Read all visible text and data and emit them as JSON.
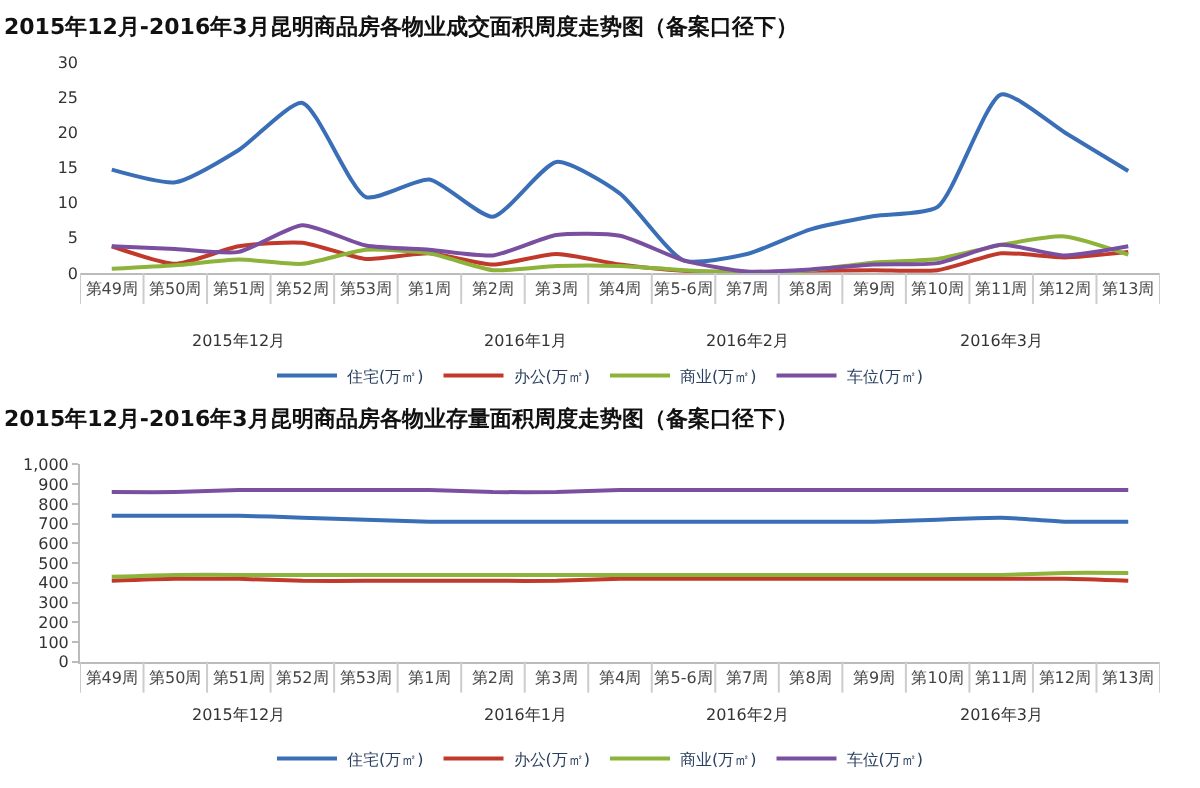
{
  "chart_data": [
    {
      "type": "line",
      "title": "2015年12月-2016年3月昆明商品房各物业成交面积周度走势图（备案口径下）",
      "categories": [
        "第49周",
        "第50周",
        "第51周",
        "第52周",
        "第53周",
        "第1周",
        "第2周",
        "第3周",
        "第4周",
        "第5-6周",
        "第7周",
        "第8周",
        "第9周",
        "第10周",
        "第11周",
        "第12周",
        "第13周"
      ],
      "series": [
        {
          "name": "住宅(万㎡)",
          "color": "#3a6fb8",
          "values": [
            14.7,
            12.9,
            17.5,
            24.2,
            10.8,
            13.3,
            8.0,
            15.8,
            11.3,
            1.8,
            2.7,
            6.2,
            8.1,
            9.4,
            25.4,
            20.0,
            14.5
          ]
        },
        {
          "name": "办公(万㎡)",
          "color": "#c0392b",
          "values": [
            3.8,
            1.3,
            3.8,
            4.3,
            2.0,
            2.8,
            1.2,
            2.7,
            1.2,
            0.3,
            0.1,
            0.3,
            0.4,
            0.4,
            2.8,
            2.2,
            3.0
          ]
        },
        {
          "name": "商业(万㎡)",
          "color": "#8db33a",
          "values": [
            0.6,
            1.1,
            1.9,
            1.3,
            3.3,
            2.8,
            0.4,
            1.0,
            1.0,
            0.4,
            0.1,
            0.4,
            1.5,
            2.0,
            4.0,
            5.2,
            2.6
          ]
        },
        {
          "name": "车位(万㎡)",
          "color": "#7b4fa0",
          "values": [
            3.8,
            3.4,
            3.0,
            6.8,
            3.9,
            3.3,
            2.5,
            5.4,
            5.3,
            1.8,
            0.2,
            0.5,
            1.2,
            1.4,
            4.0,
            2.5,
            3.8
          ]
        }
      ],
      "ylim": [
        0,
        30
      ],
      "yticks": [
        0,
        5,
        10,
        15,
        20,
        25,
        30
      ],
      "grid": false,
      "legend": "bottom",
      "annotations": [
        "2015年12月",
        "2016年1月",
        "2016年2月",
        "2016年3月"
      ]
    },
    {
      "type": "line",
      "title": "2015年12月-2016年3月昆明商品房各物业存量面积周度走势图（备案口径下）",
      "categories": [
        "第49周",
        "第50周",
        "第51周",
        "第52周",
        "第53周",
        "第1周",
        "第2周",
        "第3周",
        "第4周",
        "第5-6周",
        "第7周",
        "第8周",
        "第9周",
        "第10周",
        "第11周",
        "第12周",
        "第13周"
      ],
      "series": [
        {
          "name": "住宅(万㎡)",
          "color": "#3a6fb8",
          "values": [
            740,
            740,
            740,
            730,
            720,
            710,
            710,
            710,
            710,
            710,
            710,
            710,
            710,
            720,
            730,
            710,
            710
          ]
        },
        {
          "name": "办公(万㎡)",
          "color": "#c0392b",
          "values": [
            410,
            420,
            420,
            410,
            410,
            410,
            410,
            410,
            420,
            420,
            420,
            420,
            420,
            420,
            420,
            420,
            410
          ]
        },
        {
          "name": "商业(万㎡)",
          "color": "#8db33a",
          "values": [
            430,
            440,
            440,
            440,
            440,
            440,
            440,
            440,
            440,
            440,
            440,
            440,
            440,
            440,
            440,
            450,
            450
          ]
        },
        {
          "name": "车位(万㎡)",
          "color": "#7b4fa0",
          "values": [
            860,
            860,
            870,
            870,
            870,
            870,
            860,
            860,
            870,
            870,
            870,
            870,
            870,
            870,
            870,
            870,
            870
          ]
        }
      ],
      "ylim": [
        0,
        1000
      ],
      "yticks": [
        0,
        100,
        200,
        300,
        400,
        500,
        600,
        700,
        800,
        900,
        {
          "value": 1000,
          "label": "1,000"
        }
      ],
      "grid": false,
      "legend": "bottom",
      "annotations": [
        "2015年12月",
        "2016年1月",
        "2016年2月",
        "2016年3月"
      ]
    }
  ]
}
